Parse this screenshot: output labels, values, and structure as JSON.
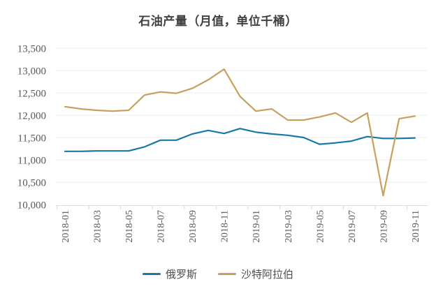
{
  "title": "石油产量（月值，单位千桶）",
  "colors": {
    "russia": "#1878a6",
    "saudi": "#c7a05f",
    "grid": "#ededed",
    "axis": "#d9d9d9",
    "tick_label": "#595959",
    "title": "#404040",
    "background": "#ffffff"
  },
  "legend": {
    "items": [
      {
        "label": "俄罗斯",
        "color": "#1878a6"
      },
      {
        "label": "沙特阿拉伯",
        "color": "#c7a05f"
      }
    ]
  },
  "chart_data": {
    "type": "line",
    "title": "石油产量（月值，单位千桶）",
    "x": [
      "2018-01",
      "2018-02",
      "2018-03",
      "2018-04",
      "2018-05",
      "2018-06",
      "2018-07",
      "2018-08",
      "2018-09",
      "2018-10",
      "2018-11",
      "2018-12",
      "2019-01",
      "2019-02",
      "2019-03",
      "2019-04",
      "2019-05",
      "2019-06",
      "2019-07",
      "2019-08",
      "2019-09",
      "2019-10",
      "2019-11"
    ],
    "x_tick_labels_shown": [
      "2018-01",
      "2018-03",
      "2018-05",
      "2018-07",
      "2018-09",
      "2018-11",
      "2019-01",
      "2019-03",
      "2019-05",
      "2019-07",
      "2019-09",
      "2019-11"
    ],
    "x_label_rotation_deg": 90,
    "series": [
      {
        "name": "俄罗斯",
        "color": "#1878a6",
        "values": [
          11190,
          11190,
          11200,
          11200,
          11200,
          11290,
          11440,
          11440,
          11580,
          11660,
          11590,
          11700,
          11620,
          11580,
          11550,
          11500,
          11350,
          11380,
          11420,
          11520,
          11480,
          11480,
          11490
        ]
      },
      {
        "name": "沙特阿拉伯",
        "color": "#c7a05f",
        "values": [
          12190,
          12140,
          12110,
          12090,
          12110,
          12450,
          12520,
          12490,
          12600,
          12790,
          13030,
          12420,
          12090,
          12140,
          11890,
          11890,
          11960,
          12050,
          11840,
          12050,
          10200,
          11920,
          11980
        ]
      }
    ],
    "ylim": [
      10000,
      13500
    ],
    "yticks": [
      10000,
      10500,
      11000,
      11500,
      12000,
      12500,
      13000,
      13500
    ],
    "ytick_labels": [
      "10,000",
      "10,500",
      "11,000",
      "11,500",
      "12,000",
      "12,500",
      "13,000",
      "13,500"
    ],
    "grid": true,
    "legend_position": "bottom"
  }
}
